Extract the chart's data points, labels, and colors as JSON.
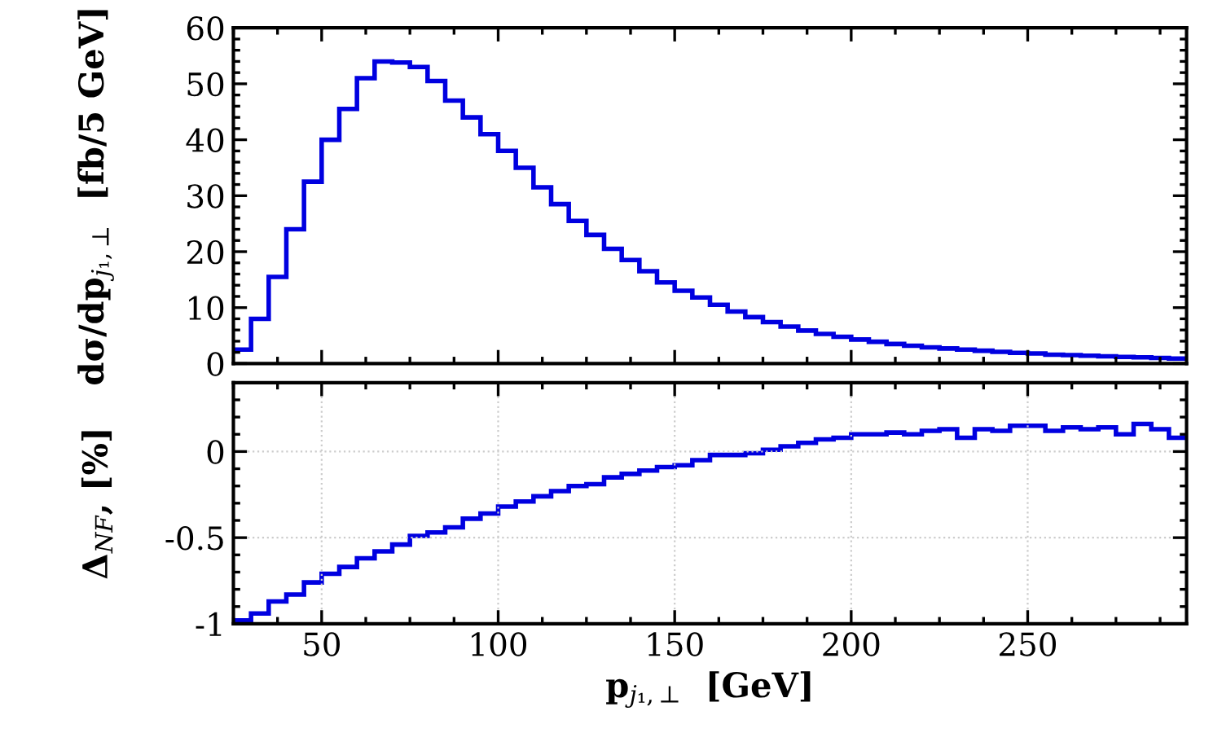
{
  "chart_data": [
    {
      "type": "histogram",
      "ylabel": "dσ/dp$_{j₁,⊥}$  [fb/5 GeV]",
      "color": "#0000e0",
      "bins": [
        25,
        30,
        35,
        40,
        45,
        50,
        55,
        60,
        65,
        70,
        75,
        80,
        85,
        90,
        95,
        100,
        105,
        110,
        115,
        120,
        125,
        130,
        135,
        140,
        145,
        150,
        155,
        160,
        165,
        170,
        175,
        180,
        185,
        190,
        195,
        200,
        205,
        210,
        215,
        220,
        225,
        230,
        235,
        240,
        245,
        250,
        255,
        260,
        265,
        270,
        275,
        280,
        285,
        290,
        295
      ],
      "values": [
        2.5,
        8,
        15.5,
        24,
        32.5,
        40,
        45.5,
        51,
        54,
        53.8,
        53,
        50.5,
        47,
        44,
        41,
        38,
        35,
        31.5,
        28.5,
        25.5,
        23,
        20.5,
        18.5,
        16.5,
        14.5,
        13,
        11.8,
        10.5,
        9.3,
        8.3,
        7.4,
        6.6,
        5.9,
        5.3,
        4.8,
        4.3,
        3.9,
        3.5,
        3.2,
        2.9,
        2.7,
        2.5,
        2.3,
        2.1,
        1.9,
        1.8,
        1.6,
        1.5,
        1.4,
        1.3,
        1.2,
        1.1,
        1.0,
        0.9
      ],
      "xlim": [
        25,
        295
      ],
      "xticks": [
        50,
        100,
        150,
        200,
        250
      ],
      "ylim": [
        0,
        60
      ],
      "yticks": [
        0,
        10,
        20,
        30,
        40,
        50,
        60
      ],
      "tick_labels": "y",
      "grid": false
    },
    {
      "type": "histogram",
      "xlabel": "p$_{j₁,⊥}$  [GeV]",
      "ylabel": "Δ$_{NF}$, [%]",
      "color": "#0000e0",
      "bins": [
        25,
        30,
        35,
        40,
        45,
        50,
        55,
        60,
        65,
        70,
        75,
        80,
        85,
        90,
        95,
        100,
        105,
        110,
        115,
        120,
        125,
        130,
        135,
        140,
        145,
        150,
        155,
        160,
        165,
        170,
        175,
        180,
        185,
        190,
        195,
        200,
        205,
        210,
        215,
        220,
        225,
        230,
        235,
        240,
        245,
        250,
        255,
        260,
        265,
        270,
        275,
        280,
        285,
        290,
        295
      ],
      "values": [
        -0.98,
        -0.94,
        -0.87,
        -0.83,
        -0.76,
        -0.71,
        -0.67,
        -0.62,
        -0.58,
        -0.54,
        -0.49,
        -0.47,
        -0.44,
        -0.39,
        -0.36,
        -0.32,
        -0.29,
        -0.26,
        -0.23,
        -0.2,
        -0.19,
        -0.15,
        -0.13,
        -0.11,
        -0.09,
        -0.08,
        -0.05,
        -0.02,
        -0.02,
        -0.01,
        0.01,
        0.03,
        0.05,
        0.07,
        0.08,
        0.1,
        0.1,
        0.11,
        0.1,
        0.12,
        0.13,
        0.08,
        0.13,
        0.12,
        0.15,
        0.15,
        0.12,
        0.14,
        0.13,
        0.14,
        0.1,
        0.16,
        0.13,
        0.08
      ],
      "xlim": [
        25,
        295
      ],
      "xticks": [
        50,
        100,
        150,
        200,
        250
      ],
      "ylim": [
        -1,
        0.4
      ],
      "yticks": [
        -1,
        -0.5,
        0
      ],
      "grid": true
    }
  ]
}
